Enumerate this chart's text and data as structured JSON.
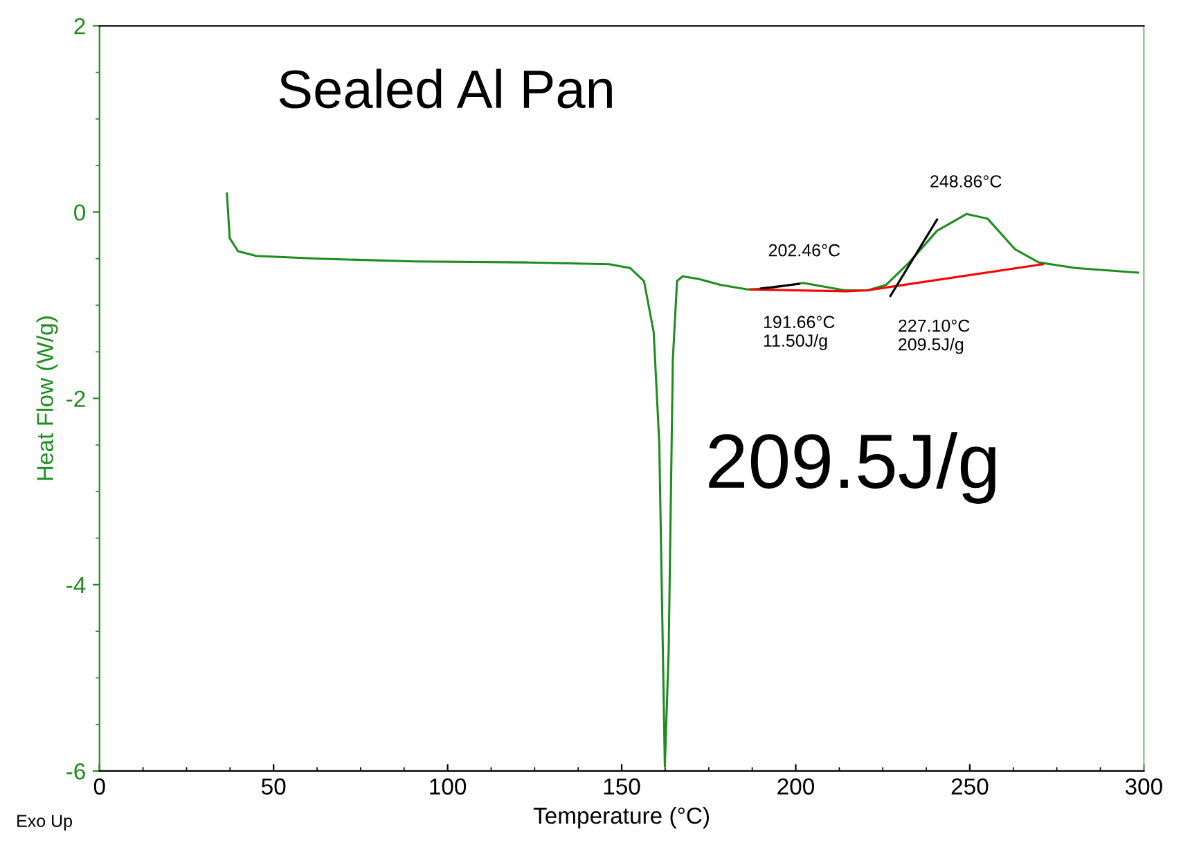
{
  "chart_data": {
    "type": "line",
    "xlabel": "Temperature (°C)",
    "ylabel": "Heat Flow (W/g)",
    "xlim": [
      0,
      300
    ],
    "ylim": [
      -6,
      2
    ],
    "xticks": [
      0,
      50,
      100,
      150,
      200,
      250,
      300
    ],
    "yticks": [
      -6,
      -4,
      -2,
      0,
      2
    ],
    "grid": false,
    "legend": false,
    "marker": "none",
    "line_style": "solid",
    "series": [
      {
        "color": "#1e8c1e",
        "x": [
          36.6,
          37.4,
          39.8,
          45,
          62.9,
          90.7,
          122.5,
          146.4,
          152.4,
          156.4,
          159.2,
          160.8,
          162.4,
          163.5,
          164.7,
          165.9,
          167.5,
          172.3,
          178.3,
          186.2,
          192,
          202.1,
          214.1,
          220.7,
          226,
          232.6,
          240.6,
          249.1,
          255.1,
          263,
          269.8,
          280.4,
          298.3
        ],
        "values": [
          0.2,
          -0.28,
          -0.42,
          -0.47,
          -0.5,
          -0.53,
          -0.54,
          -0.56,
          -0.6,
          -0.74,
          -1.29,
          -2.48,
          -5.95,
          -4.71,
          -1.58,
          -0.74,
          -0.69,
          -0.72,
          -0.78,
          -0.83,
          -0.82,
          -0.76,
          -0.84,
          -0.84,
          -0.78,
          -0.54,
          -0.2,
          -0.02,
          -0.07,
          -0.4,
          -0.54,
          -0.6,
          -0.65
        ]
      },
      {
        "color": "#ff0000",
        "x": [
          187,
          214.5,
          220.5,
          271
        ],
        "values": [
          -0.83,
          -0.85,
          -0.84,
          -0.56
        ]
      },
      {
        "color": "#000000",
        "x": [
          190,
          201
        ],
        "values": [
          -0.82,
          -0.77
        ]
      },
      {
        "color": "#000000",
        "x": [
          227.2,
          240.6
        ],
        "values": [
          -0.9,
          -0.08
        ]
      }
    ],
    "annotations": [
      "Sealed Al Pan",
      "209.5J/g",
      "Exo Up",
      {
        "text": "202.46°C",
        "x": 202.46,
        "y": -0.76
      },
      {
        "text": "248.86°C",
        "x": 248.86,
        "y": -0.02
      },
      {
        "text": "191.66°C\n11.50J/g",
        "x": 191.66,
        "y": -0.82
      },
      {
        "text": "227.10°C\n209.5J/g",
        "x": 227.1,
        "y": -0.86
      }
    ]
  }
}
